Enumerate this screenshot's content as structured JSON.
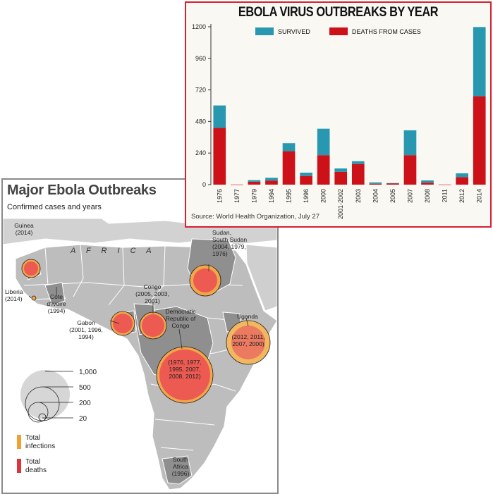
{
  "map": {
    "title": "Major Ebola Outbreaks",
    "subtitle": "Confirmed cases and years",
    "africa_label": "A F R I C A",
    "outbreaks": [
      {
        "id": "guinea",
        "lines": [
          "Guinea",
          "(2014)"
        ]
      },
      {
        "id": "liberia",
        "lines": [
          "Liberia",
          "(2014)"
        ]
      },
      {
        "id": "cote",
        "lines": [
          "Cote",
          "d'Ivoire",
          "(1994)"
        ]
      },
      {
        "id": "gabon",
        "lines": [
          "Gabon",
          "(2001, 1996,",
          "1994)"
        ]
      },
      {
        "id": "congo",
        "lines": [
          "Congo",
          "(2005, 2003,",
          "2001)"
        ]
      },
      {
        "id": "drc",
        "lines": [
          "Democratic",
          "Republic of",
          "Congo"
        ]
      },
      {
        "id": "drc-years",
        "lines": [
          "(1976, 1977,",
          "1995, 2007,",
          "2008, 2012)"
        ]
      },
      {
        "id": "sudan",
        "lines": [
          "Sudan,",
          "South Sudan",
          "(2004, 1979,",
          "1976)"
        ]
      },
      {
        "id": "uganda",
        "lines": [
          "Uganda"
        ]
      },
      {
        "id": "uganda-years",
        "lines": [
          "(2012, 2011,",
          "2007, 2000)"
        ]
      },
      {
        "id": "south-africa",
        "lines": [
          "South",
          "Africa",
          "(1996)"
        ]
      }
    ],
    "size_legend": [
      "1,000",
      "500",
      "200",
      "20"
    ],
    "color_legend": [
      {
        "lines": [
          "Total",
          "infections"
        ],
        "color": "#f0a030"
      },
      {
        "lines": [
          "Total",
          "deaths"
        ],
        "color": "#e0343c"
      }
    ]
  },
  "chart_data": {
    "type": "bar",
    "title": "EBOLA VIRUS OUTBREAKS BY YEAR",
    "source": "Source: World Health Organization, July 27",
    "stacked": true,
    "categories": [
      "1976",
      "1977",
      "1979",
      "1994",
      "1995",
      "1996",
      "2000",
      "2001-2002",
      "2003",
      "2004",
      "2005",
      "2007",
      "2008",
      "2011",
      "2012",
      "2014"
    ],
    "series": [
      {
        "name": "DEATHS FROM CASES",
        "color": "#cc1118",
        "values": [
          431,
          1,
          22,
          31,
          254,
          66,
          224,
          97,
          157,
          7,
          10,
          224,
          15,
          1,
          57,
          672
        ]
      },
      {
        "name": "SURVIVED",
        "color": "#2898b0",
        "values": [
          171,
          0,
          12,
          21,
          61,
          25,
          201,
          26,
          21,
          10,
          2,
          189,
          17,
          0,
          29,
          526
        ]
      }
    ],
    "ylim": [
      0,
      1200
    ],
    "yticks": [
      0,
      240,
      480,
      720,
      960,
      1200
    ],
    "ytick_labels": [
      "0",
      "240",
      "480",
      "720",
      "960",
      "1200"
    ],
    "legend": "top",
    "grid": false
  }
}
